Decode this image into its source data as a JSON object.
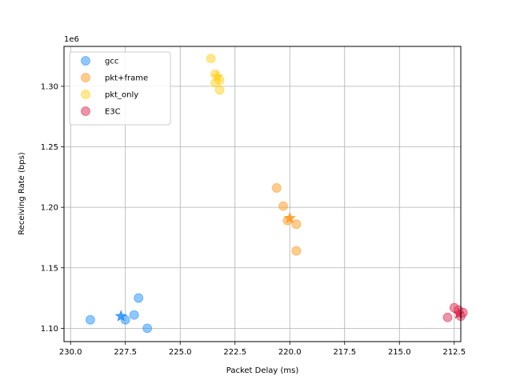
{
  "chart_data": {
    "type": "scatter",
    "title": "",
    "xlabel": "Packet Delay (ms)",
    "ylabel": "Receiving Rate (bps)",
    "y_offset_label": "1e6",
    "x_inverted": true,
    "xlim": [
      230.3,
      212.2
    ],
    "ylim": [
      1.089,
      1.333
    ],
    "x_ticks": [
      230.0,
      227.5,
      225.0,
      222.5,
      220.0,
      217.5,
      215.0,
      212.5
    ],
    "x_tick_labels": [
      "230.0",
      "227.5",
      "225.0",
      "222.5",
      "220.0",
      "217.5",
      "215.0",
      "212.5"
    ],
    "y_ticks": [
      1.1,
      1.15,
      1.2,
      1.25,
      1.3
    ],
    "y_tick_labels": [
      "1.10",
      "1.15",
      "1.20",
      "1.25",
      "1.30"
    ],
    "grid": true,
    "legend_position": "upper-left",
    "series": [
      {
        "name": "gcc",
        "color": "#1f8fff",
        "points": [
          {
            "x": 229.1,
            "y": 1.107
          },
          {
            "x": 227.5,
            "y": 1.107
          },
          {
            "x": 227.1,
            "y": 1.111
          },
          {
            "x": 226.9,
            "y": 1.125
          },
          {
            "x": 226.5,
            "y": 1.1
          }
        ],
        "mean": {
          "x": 227.7,
          "y": 1.11
        }
      },
      {
        "name": "pkt+frame",
        "color": "#ff9a1f",
        "points": [
          {
            "x": 220.6,
            "y": 1.216
          },
          {
            "x": 220.3,
            "y": 1.201
          },
          {
            "x": 220.1,
            "y": 1.189
          },
          {
            "x": 219.7,
            "y": 1.186
          },
          {
            "x": 219.7,
            "y": 1.164
          }
        ],
        "mean": {
          "x": 220.0,
          "y": 1.191
        }
      },
      {
        "name": "pkt_only",
        "color": "#ffd21f",
        "points": [
          {
            "x": 223.6,
            "y": 1.323
          },
          {
            "x": 223.4,
            "y": 1.31
          },
          {
            "x": 223.2,
            "y": 1.305
          },
          {
            "x": 223.4,
            "y": 1.303
          },
          {
            "x": 223.2,
            "y": 1.297
          }
        ],
        "mean": {
          "x": 223.3,
          "y": 1.308
        }
      },
      {
        "name": "E3C",
        "color": "#e0284f",
        "points": [
          {
            "x": 212.5,
            "y": 1.117
          },
          {
            "x": 212.3,
            "y": 1.115
          },
          {
            "x": 212.1,
            "y": 1.113
          },
          {
            "x": 212.2,
            "y": 1.11
          },
          {
            "x": 212.8,
            "y": 1.109
          }
        ],
        "mean": {
          "x": 212.3,
          "y": 1.112
        }
      }
    ]
  }
}
